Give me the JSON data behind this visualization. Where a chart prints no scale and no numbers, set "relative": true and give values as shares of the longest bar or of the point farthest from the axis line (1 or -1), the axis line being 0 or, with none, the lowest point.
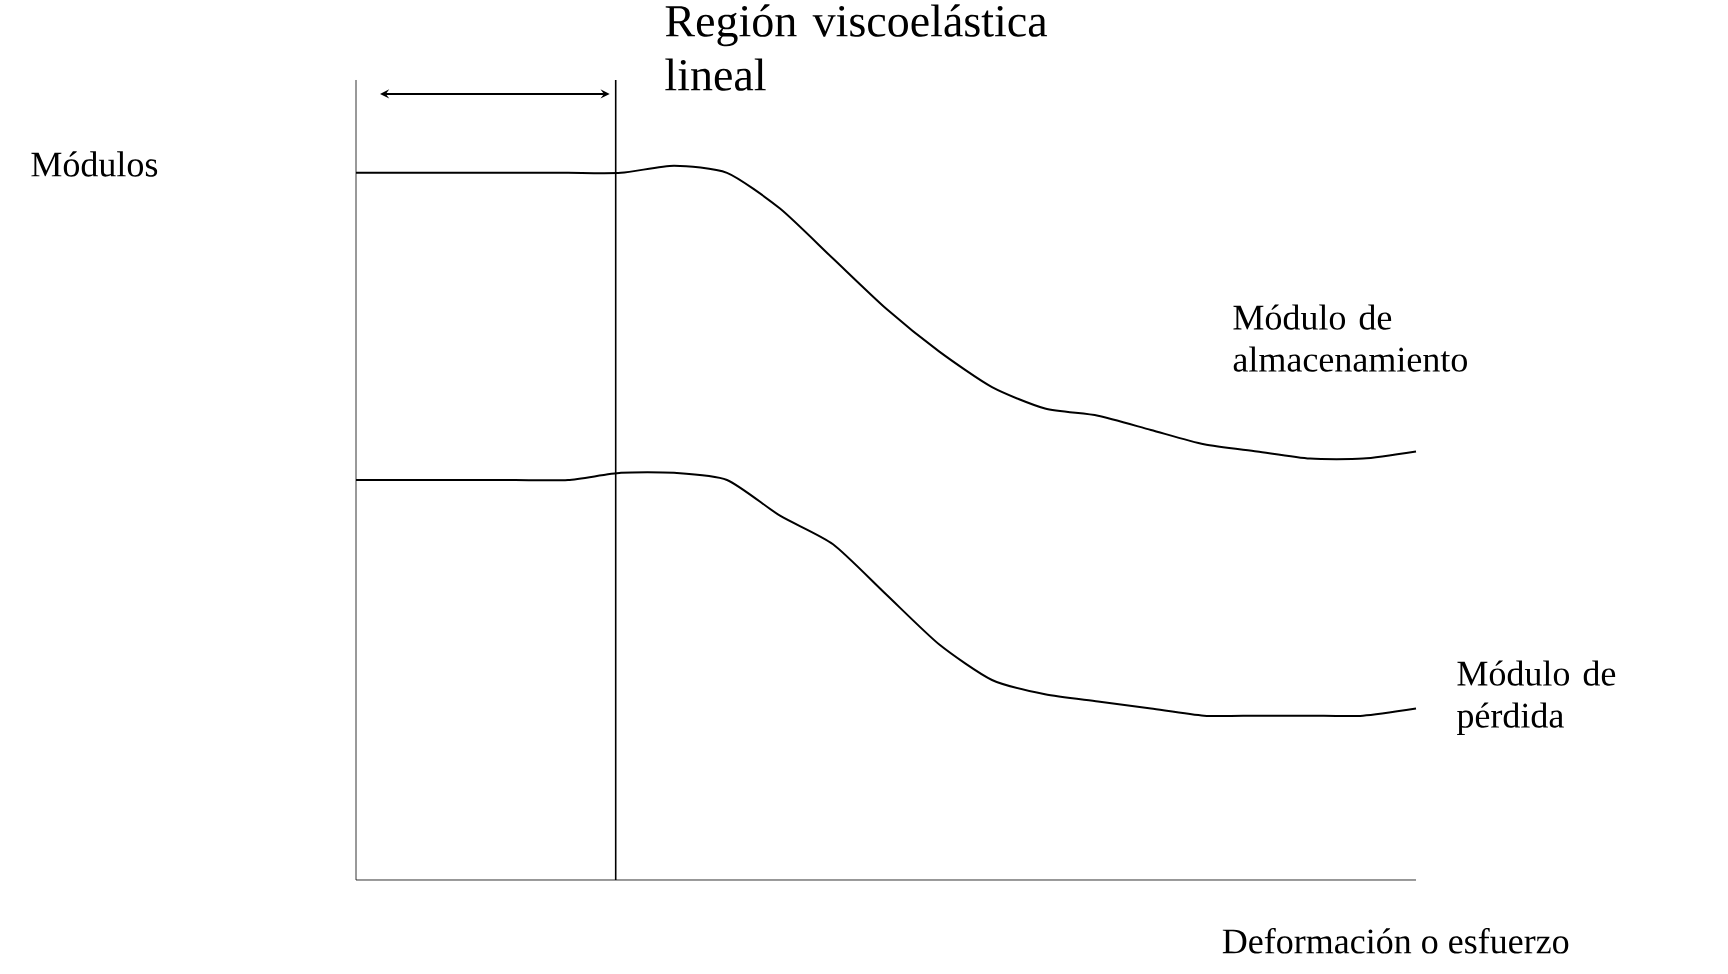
{
  "chart_data": {
    "type": "line",
    "relative": true,
    "xlabel": "Deformación o esfuerzo",
    "categories": [
      null,
      null,
      null,
      null,
      null,
      null,
      null,
      null,
      null,
      null,
      null,
      null,
      null,
      null,
      null,
      null,
      null,
      null,
      null,
      null,
      null
    ],
    "series": [
      {
        "name": "Módulo de almacenamiento",
        "color": "#000000",
        "values": [
          0.99,
          0.99,
          0.99,
          0.99,
          0.99,
          0.99,
          1,
          0.99,
          0.94,
          0.87,
          0.8,
          0.74,
          0.69,
          0.66,
          0.65,
          0.63,
          0.61,
          0.6,
          0.59,
          0.59,
          0.6
        ]
      },
      {
        "name": "Módulo de pérdida",
        "color": "#000000",
        "values": [
          0.56,
          0.56,
          0.56,
          0.56,
          0.56,
          0.57,
          0.57,
          0.56,
          0.51,
          0.47,
          0.4,
          0.33,
          0.28,
          0.26,
          0.25,
          0.24,
          0.23,
          0.23,
          0.23,
          0.23,
          0.24
        ]
      }
    ],
    "annotations": [
      "Región viscoelástica lineal",
      "Módulos"
    ]
  }
}
